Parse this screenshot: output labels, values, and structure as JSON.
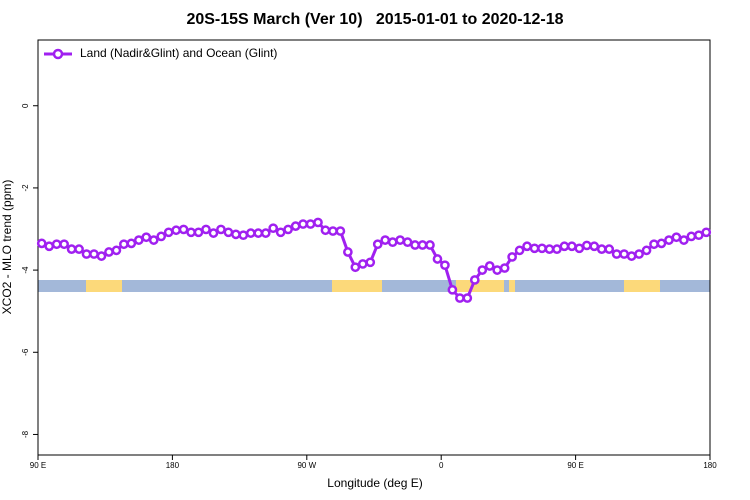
{
  "chart_data": {
    "type": "line",
    "title": "20S-15S March (Ver 10)   2015-01-01 to 2020-12-18",
    "xlabel": "Longitude (deg E)",
    "ylabel": "XCO2 - MLO trend (ppm)",
    "x": [
      92.5,
      97.5,
      102.5,
      107.5,
      112.5,
      117.5,
      122.5,
      127.5,
      132.5,
      137.5,
      142.5,
      147.5,
      152.5,
      157.5,
      162.5,
      167.5,
      172.5,
      177.5,
      182.5,
      187.5,
      192.5,
      197.5,
      202.5,
      207.5,
      212.5,
      217.5,
      222.5,
      227.5,
      232.5,
      237.5,
      242.5,
      247.5,
      252.5,
      257.5,
      262.5,
      267.5,
      272.5,
      277.5,
      282.5,
      287.5,
      292.5,
      297.5,
      302.5,
      307.5,
      312.5,
      317.5,
      322.5,
      327.5,
      332.5,
      337.5,
      342.5,
      347.5,
      352.5,
      357.5,
      362.5,
      367.5,
      372.5,
      377.5,
      382.5,
      387.5,
      392.5,
      397.5,
      402.5,
      407.5,
      412.5,
      417.5,
      422.5,
      427.5,
      432.5,
      437.5,
      442.5,
      447.5,
      452.5,
      457.5,
      462.5,
      467.5,
      472.5,
      477.5,
      482.5,
      487.5,
      492.5,
      497.5,
      502.5,
      507.5,
      512.5,
      517.5,
      522.5,
      527.5,
      532.5,
      537.5
    ],
    "series": [
      {
        "name": "Land (Nadir&Glint) and Ocean (Glint)",
        "color": "#a020f0",
        "values": [
          -3.35,
          -3.42,
          -3.37,
          -3.37,
          -3.49,
          -3.49,
          -3.61,
          -3.61,
          -3.66,
          -3.56,
          -3.52,
          -3.37,
          -3.35,
          -3.27,
          -3.2,
          -3.27,
          -3.18,
          -3.08,
          -3.03,
          -3.01,
          -3.08,
          -3.08,
          -3.01,
          -3.1,
          -3.01,
          -3.08,
          -3.13,
          -3.15,
          -3.1,
          -3.1,
          -3.1,
          -2.98,
          -3.08,
          -3.01,
          -2.93,
          -2.88,
          -2.88,
          -2.84,
          -3.03,
          -3.05,
          -3.05,
          -3.56,
          -3.93,
          -3.85,
          -3.81,
          -3.37,
          -3.27,
          -3.32,
          -3.27,
          -3.32,
          -3.39,
          -3.39,
          -3.39,
          -3.73,
          -3.88,
          -4.48,
          -4.68,
          -4.68,
          -4.24,
          -4.0,
          -3.9,
          -4.0,
          -3.95,
          -3.68,
          -3.52,
          -3.42,
          -3.47,
          -3.47,
          -3.49,
          -3.49,
          -3.42,
          -3.42,
          -3.47,
          -3.4,
          -3.42,
          -3.49,
          -3.49,
          -3.61,
          -3.61,
          -3.66,
          -3.61,
          -3.52,
          -3.37,
          -3.35,
          -3.27,
          -3.2,
          -3.27,
          -3.18,
          -3.15,
          -3.08
        ]
      }
    ],
    "xlim": [
      90,
      540
    ],
    "xticks": [
      {
        "value": 90,
        "label": "90 E"
      },
      {
        "value": 180,
        "label": "180"
      },
      {
        "value": 270,
        "label": "90 W"
      },
      {
        "value": 360,
        "label": "0"
      },
      {
        "value": 450,
        "label": "90 E"
      },
      {
        "value": 540,
        "label": "180"
      }
    ],
    "ylim": [
      -8.5,
      1.6
    ],
    "yticks": [
      -8,
      -6,
      -4,
      -2,
      0
    ],
    "grid": false,
    "legend": "top-left"
  }
}
